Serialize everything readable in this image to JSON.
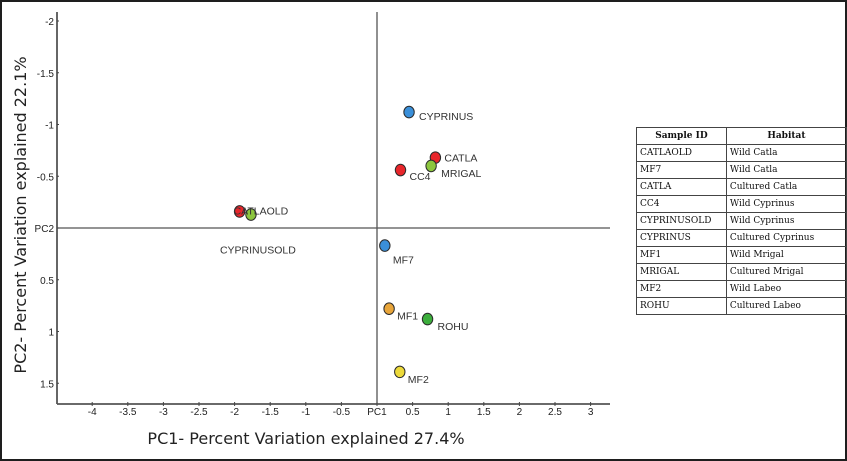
{
  "chart_data": {
    "type": "scatter",
    "title": "",
    "xlabel": "PC1- Percent Variation explained 27.4%",
    "ylabel": "PC2- Percent Variation explained 22.1%",
    "xlim": [
      -4.5,
      3.3
    ],
    "ylim": [
      -2.1,
      1.7
    ],
    "y_inverted": true,
    "x_ticks": [
      {
        "value": -4,
        "label": "-4"
      },
      {
        "value": -3.5,
        "label": "-3.5"
      },
      {
        "value": -3,
        "label": "-3"
      },
      {
        "value": -2.5,
        "label": "-2.5"
      },
      {
        "value": -2,
        "label": "-2"
      },
      {
        "value": -1.5,
        "label": "-1.5"
      },
      {
        "value": -1,
        "label": "-1"
      },
      {
        "value": -0.5,
        "label": "-0.5"
      },
      {
        "value": 0,
        "label": "PC1"
      },
      {
        "value": 0.5,
        "label": "0.5"
      },
      {
        "value": 1,
        "label": "1"
      },
      {
        "value": 1.5,
        "label": "1.5"
      },
      {
        "value": 2,
        "label": "2"
      },
      {
        "value": 2.5,
        "label": "2.5"
      },
      {
        "value": 3,
        "label": "3"
      }
    ],
    "y_ticks": [
      {
        "value": -2,
        "label": "-2"
      },
      {
        "value": -1.5,
        "label": "-1.5"
      },
      {
        "value": -1,
        "label": "-1"
      },
      {
        "value": -0.5,
        "label": "-0.5"
      },
      {
        "value": 0,
        "label": "PC2"
      },
      {
        "value": 0.5,
        "label": "0.5"
      },
      {
        "value": 1,
        "label": "1"
      },
      {
        "value": 1.5,
        "label": "1.5"
      }
    ],
    "grid": false,
    "points": [
      {
        "label": "CYPRINUS",
        "x": 0.45,
        "y": -1.12,
        "color": "#3a8fd9"
      },
      {
        "label": "CATLA",
        "x": 0.82,
        "y": -0.68,
        "color": "#e8262b"
      },
      {
        "label": "MRIGAL",
        "x": 0.76,
        "y": -0.6,
        "color": "#8cc63e"
      },
      {
        "label": "CC4",
        "x": 0.33,
        "y": -0.56,
        "color": "#e8262b"
      },
      {
        "label": "CATLAOLD",
        "x": -1.93,
        "y": -0.16,
        "color": "#e8262b"
      },
      {
        "label": "CYPRINUSOLD",
        "x": -1.77,
        "y": -0.13,
        "color": "#8cc63e"
      },
      {
        "label": "MF7",
        "x": 0.11,
        "y": 0.17,
        "color": "#3a8fd9"
      },
      {
        "label": "MF1",
        "x": 0.17,
        "y": 0.78,
        "color": "#e8a53a"
      },
      {
        "label": "ROHU",
        "x": 0.71,
        "y": 0.88,
        "color": "#3cae3c"
      },
      {
        "label": "MF2",
        "x": 0.32,
        "y": 1.39,
        "color": "#ecd93a"
      }
    ]
  },
  "legend_table": {
    "headers": [
      "Sample ID",
      "Habitat"
    ],
    "rows": [
      [
        "CATLAOLD",
        "Wild Catla"
      ],
      [
        "MF7",
        "Wild Catla"
      ],
      [
        "CATLA",
        "Cultured Catla"
      ],
      [
        "CC4",
        "Wild Cyprinus"
      ],
      [
        "CYPRINUSOLD",
        "Wild Cyprinus"
      ],
      [
        "CYPRINUS",
        "Cultured Cyprinus"
      ],
      [
        "MF1",
        "Wild Mrigal"
      ],
      [
        "MRIGAL",
        "Cultured Mrigal"
      ],
      [
        "MF2",
        "Wild Labeo"
      ],
      [
        "ROHU",
        "Cultured Labeo"
      ]
    ]
  }
}
